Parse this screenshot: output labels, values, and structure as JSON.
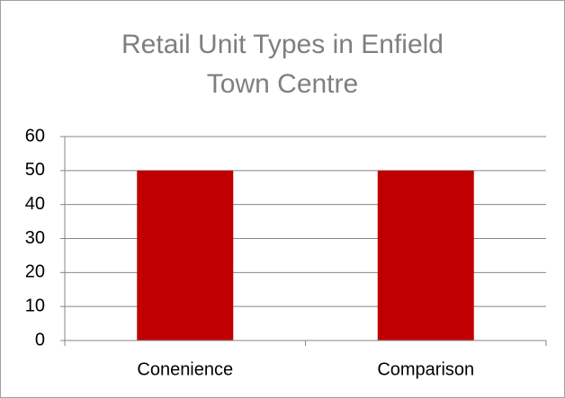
{
  "chart_data": {
    "type": "bar",
    "title": "Retail Unit Types in Enfield Town Centre",
    "categories": [
      "Conenience",
      "Comparison"
    ],
    "values": [
      50,
      50
    ],
    "color": "#c00000",
    "ylim": [
      0,
      60
    ],
    "yticks": [
      0,
      10,
      20,
      30,
      40,
      50,
      60
    ],
    "grid": true
  }
}
